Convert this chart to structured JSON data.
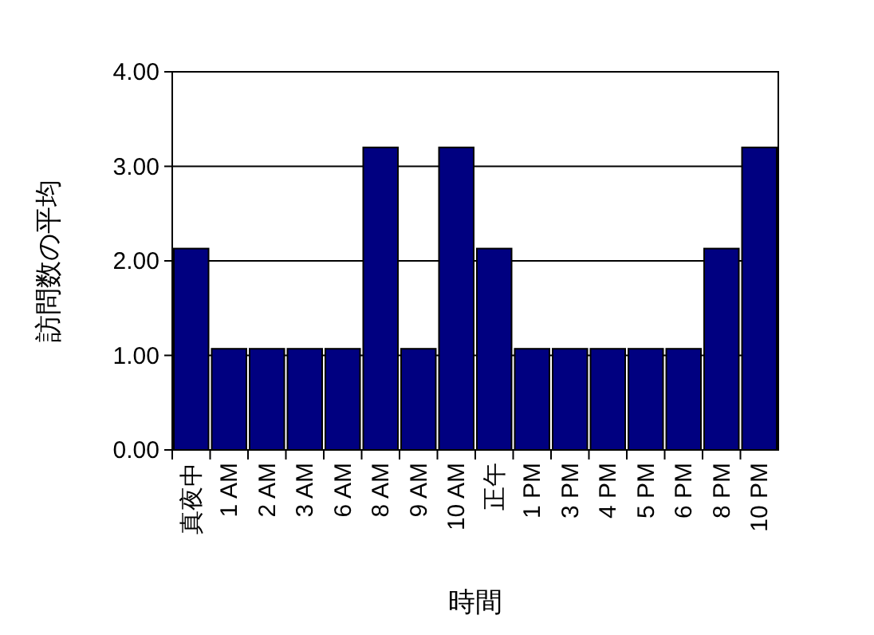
{
  "chart_data": {
    "type": "bar",
    "xlabel": "時間",
    "ylabel": "訪問数の平均",
    "categories": [
      "真夜中",
      "1 AM",
      "2 AM",
      "3 AM",
      "6 AM",
      "8 AM",
      "9 AM",
      "10 AM",
      "正午",
      "1 PM",
      "3 PM",
      "4 PM",
      "5 PM",
      "6 PM",
      "8 PM",
      "10 PM"
    ],
    "values": [
      2.13,
      1.07,
      1.07,
      1.07,
      1.07,
      3.2,
      1.07,
      3.2,
      2.13,
      1.07,
      1.07,
      1.07,
      1.07,
      1.07,
      2.13,
      3.2
    ],
    "color": "#000080",
    "ylim": [
      0,
      4
    ],
    "yticks": [
      {
        "value": 0,
        "label": "0.00"
      },
      {
        "value": 1,
        "label": "1.00"
      },
      {
        "value": 2,
        "label": "2.00"
      },
      {
        "value": 3,
        "label": "3.00"
      },
      {
        "value": 4,
        "label": "4.00"
      }
    ],
    "grid": "y"
  }
}
